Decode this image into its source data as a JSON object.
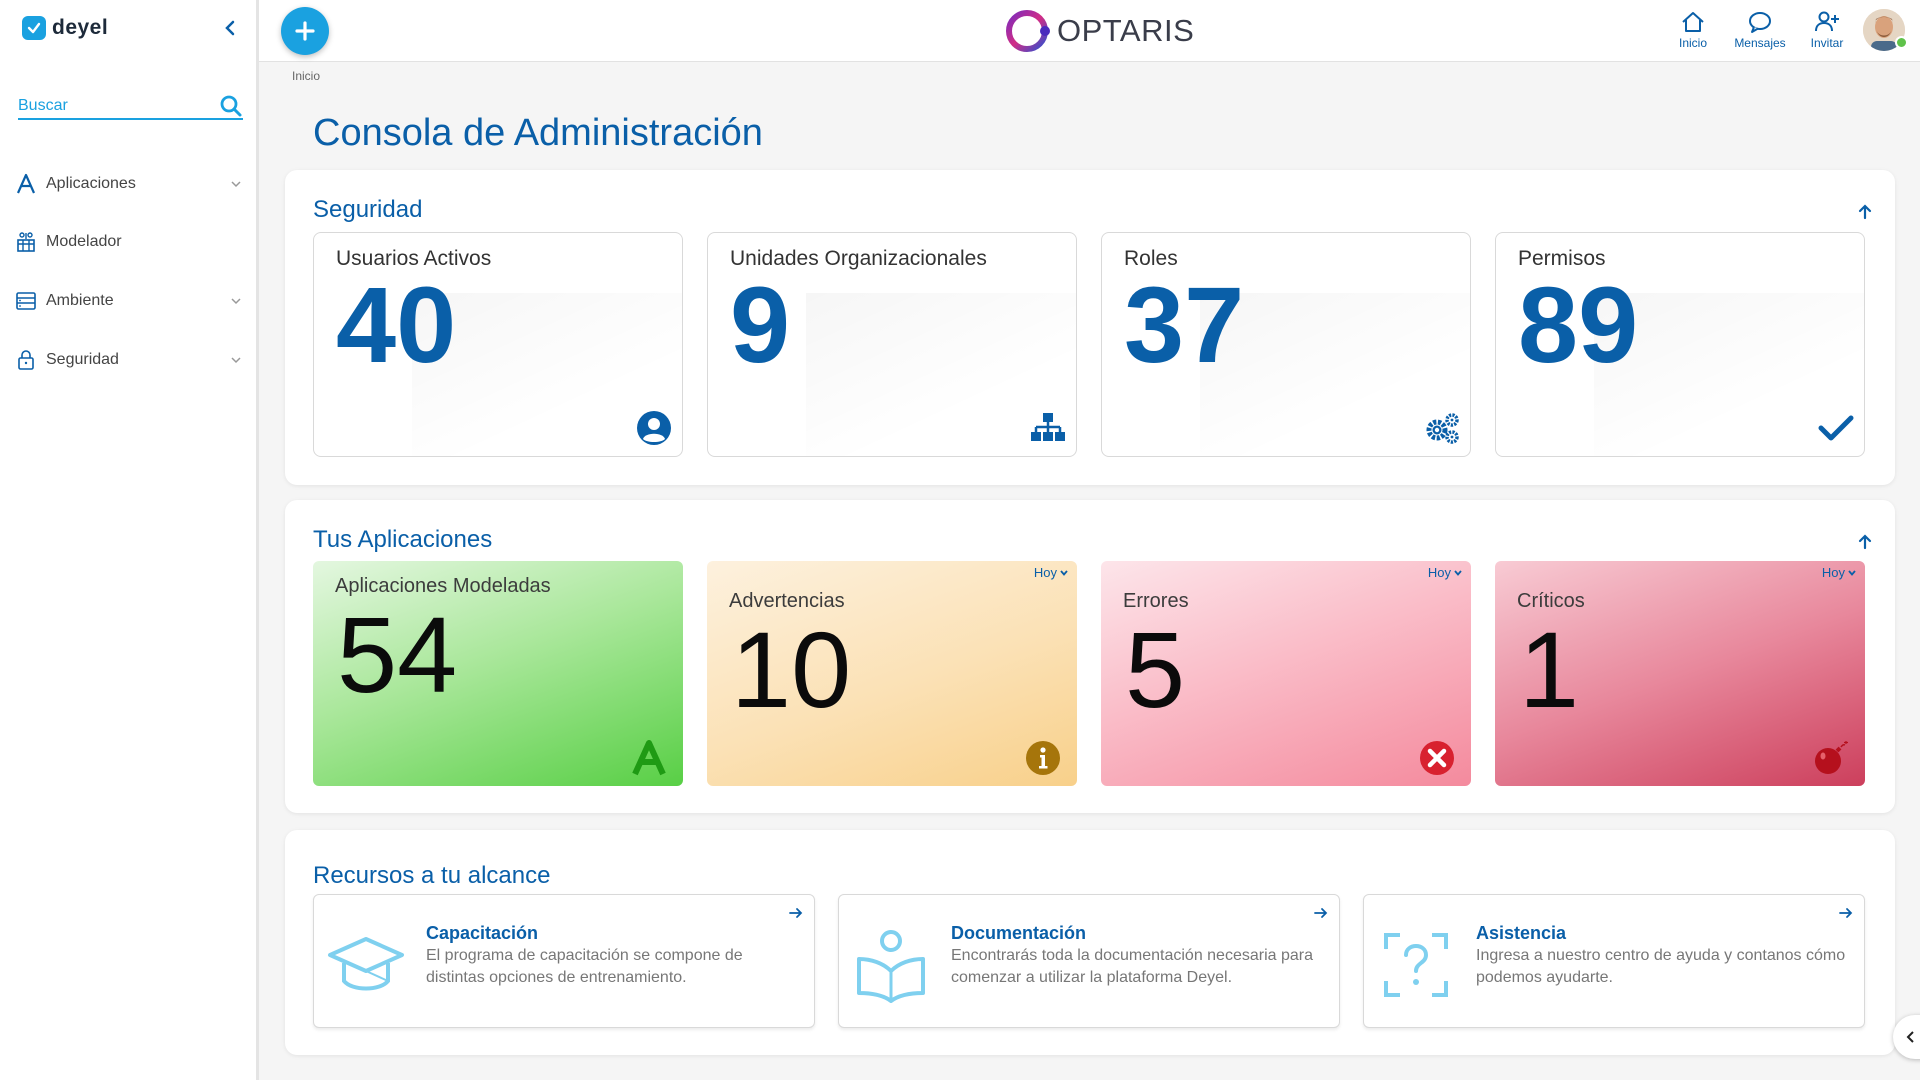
{
  "app": {
    "name": "deyel",
    "brand": "OPTARIS"
  },
  "sidebar": {
    "search_placeholder": "Buscar",
    "items": [
      {
        "label": "Aplicaciones",
        "icon": "aplicaciones-icon",
        "expandable": true
      },
      {
        "label": "Modelador",
        "icon": "modelador-icon",
        "expandable": false
      },
      {
        "label": "Ambiente",
        "icon": "ambiente-icon",
        "expandable": true
      },
      {
        "label": "Seguridad",
        "icon": "lock-icon",
        "expandable": true
      }
    ]
  },
  "topbar": {
    "actions": [
      {
        "label": "Inicio",
        "icon": "home-icon"
      },
      {
        "label": "Mensajes",
        "icon": "chat-icon"
      },
      {
        "label": "Invitar",
        "icon": "invite-user-icon"
      }
    ]
  },
  "breadcrumb": "Inicio",
  "page_title": "Consola de Administración",
  "security": {
    "title": "Seguridad",
    "cards": [
      {
        "label": "Usuarios Activos",
        "value": "40",
        "icon": "user-circle-icon"
      },
      {
        "label": "Unidades Organizacionales",
        "value": "9",
        "icon": "org-chart-icon"
      },
      {
        "label": "Roles",
        "value": "37",
        "icon": "gears-icon"
      },
      {
        "label": "Permisos",
        "value": "89",
        "icon": "check-icon"
      }
    ]
  },
  "apps": {
    "title": "Tus Aplicaciones",
    "cards": [
      {
        "label": "Aplicaciones Modeladas",
        "value": "54",
        "icon": "letter-a-icon",
        "filter": ""
      },
      {
        "label": "Advertencias",
        "value": "10",
        "icon": "info-icon",
        "filter": "Hoy"
      },
      {
        "label": "Errores",
        "value": "5",
        "icon": "error-x-icon",
        "filter": "Hoy"
      },
      {
        "label": "Críticos",
        "value": "1",
        "icon": "bomb-icon",
        "filter": "Hoy"
      }
    ]
  },
  "resources": {
    "title": "Recursos a tu alcance",
    "cards": [
      {
        "title": "Capacitación",
        "desc": "El programa de capacitación se compone de distintas opciones de entrenamiento.",
        "icon": "graduation-cap-icon"
      },
      {
        "title": "Documentación",
        "desc": "Encontrarás toda la documentación necesaria para comenzar a utilizar la plataforma Deyel.",
        "icon": "reader-book-icon"
      },
      {
        "title": "Asistencia",
        "desc": "Ingresa a nuestro centro de ayuda y contanos cómo podemos ayudarte.",
        "icon": "help-question-icon"
      }
    ]
  },
  "colors": {
    "primary": "#0a5fa8",
    "accent": "#1aa1e0"
  }
}
